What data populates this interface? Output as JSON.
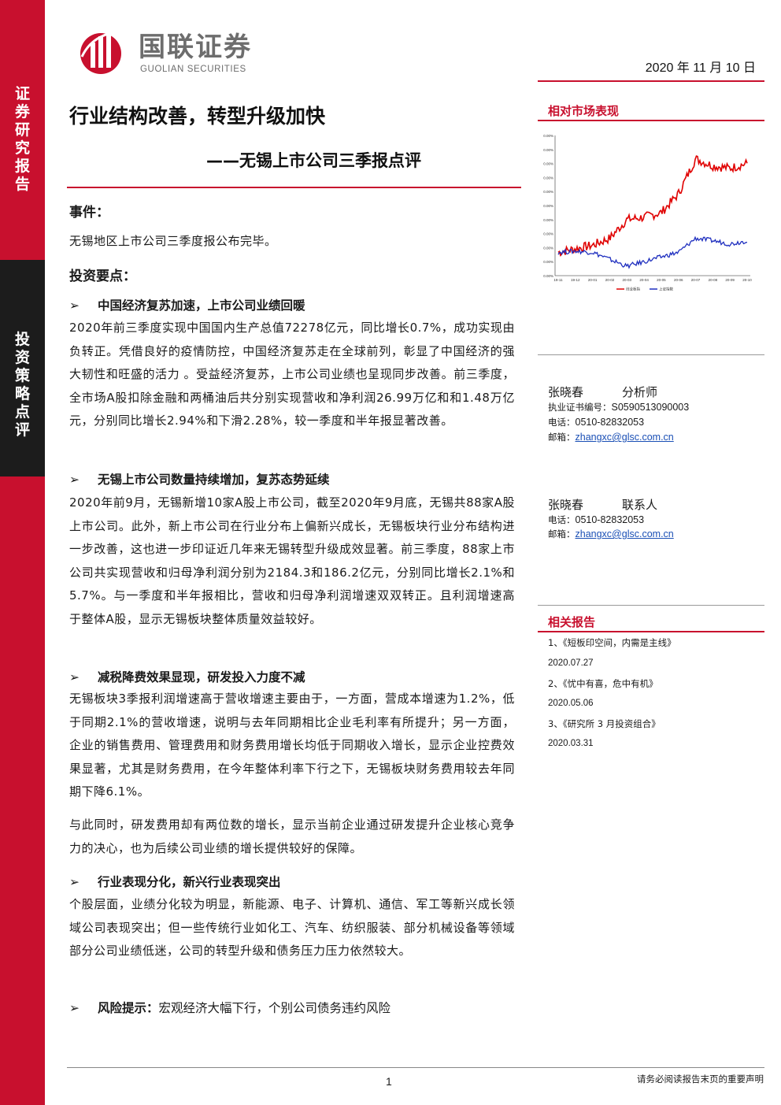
{
  "sidebar": {
    "top_label": [
      "证",
      "券",
      "研",
      "究",
      "报",
      "告"
    ],
    "bottom_label": [
      "投",
      "资",
      "策",
      "略",
      "点",
      "评"
    ]
  },
  "header": {
    "logo_cn": "国联证券",
    "logo_en": "GUOLIAN SECURITIES",
    "date": "2020 年 11 月 10 日"
  },
  "title": "行业结构改善，转型升级加快",
  "subtitle": "——无锡上市公司三季报点评",
  "event": {
    "heading": "事件：",
    "text": "无锡地区上市公司三季度报公布完毕。"
  },
  "points_heading": "投资要点：",
  "bullets": [
    {
      "arrow": "➢",
      "heading": "中国经济复苏加速，上市公司业绩回暖",
      "paragraphs": [
        "2020年前三季度实现中国国内生产总值72278亿元，同比增长0.7%，成功实现由负转正。凭借良好的疫情防控，中国经济复苏走在全球前列，彰显了中国经济的强大韧性和旺盛的活力 。受益经济复苏，上市公司业绩也呈现同步改善。前三季度，全市场A股扣除金融和两桶油后共分别实现营收和净利润26.99万亿和和1.48万亿元，分别同比增长2.94%和下滑2.28%，较一季度和半年报显著改善。"
      ]
    },
    {
      "arrow": "➢",
      "heading": "无锡上市公司数量持续增加，复苏态势延续",
      "paragraphs": [
        "2020年前9月，无锡新增10家A股上市公司，截至2020年9月底，无锡共88家A股上市公司。此外，新上市公司在行业分布上偏新兴成长，无锡板块行业分布结构进一步改善，这也进一步印证近几年来无锡转型升级成效显著。前三季度，88家上市公司共实现营收和归母净利润分别为2184.3和186.2亿元，分别同比增长2.1%和5.7%。与一季度和半年报相比，营收和归母净利润增速双双转正。且利润增速高于整体A股，显示无锡板块整体质量效益较好。"
      ]
    },
    {
      "arrow": "➢",
      "heading": "减税降费效果显现，研发投入力度不减",
      "paragraphs": [
        "无锡板块3季报利润增速高于营收增速主要由于，一方面，营成本增速为1.2%，低于同期2.1%的营收增速，说明与去年同期相比企业毛利率有所提升；另一方面，企业的销售费用、管理费用和财务费用增长均低于同期收入增长，显示企业控费效果显著，尤其是财务费用，在今年整体利率下行之下，无锡板块财务费用较去年同期下降6.1%。",
        "与此同时，研发费用却有两位数的增长，显示当前企业通过研发提升企业核心竞争力的决心，也为后续公司业绩的增长提供较好的保障。"
      ]
    },
    {
      "arrow": "➢",
      "heading": "行业表现分化，新兴行业表现突出",
      "paragraphs": [
        "个股层面，业绩分化较为明显，新能源、电子、计算机、通信、军工等新兴成长领域公司表现突出；但一些传统行业如化工、汽车、纺织服装、部分机械设备等领域部分公司业绩低迷，公司的转型升级和债务压力压力依然较大。"
      ]
    }
  ],
  "risk": {
    "arrow": "➢",
    "label": "风险提示：",
    "text": "宏观经济大幅下行，个别公司债务违约风险"
  },
  "right": {
    "market_heading": "相对市场表现",
    "analyst": {
      "name": "张晓春",
      "role": "分析师",
      "cert_label": "执业证书编号：",
      "cert": "S0590513090003",
      "phone_label": "电话：",
      "phone": "0510-82832053",
      "email_label": "邮箱：",
      "email": "zhangxc@glsc.com.cn"
    },
    "contact": {
      "name": "张晓春",
      "role": "联系人",
      "phone_label": "电话：",
      "phone": "0510-82832053",
      "email_label": "邮箱：",
      "email": "zhangxc@glsc.com.cn"
    },
    "reports_heading": "相关报告",
    "reports": [
      {
        "title": "1、《短板印空间，内需是主线》",
        "date": "2020.07.27"
      },
      {
        "title": "2、《忧中有喜，危中有机》",
        "date": "2020.05.06"
      },
      {
        "title": "3、《研究所 3 月投资组合》",
        "date": "2020.03.31"
      }
    ]
  },
  "chart_data": {
    "type": "line",
    "x": [
      "19-11",
      "19-12",
      "20-01",
      "20-02",
      "20-03",
      "20-04",
      "20-05",
      "20-06",
      "20-07",
      "20-08",
      "20-09",
      "20-10"
    ],
    "yticks": [
      "0.00%",
      "0.00%",
      "0.00%",
      "0.00%",
      "0.00%",
      "0.00%",
      "0.00%",
      "0.00%",
      "0.00%",
      "0.00%",
      "0.00%"
    ],
    "series": [
      {
        "name": "创业板指",
        "color": "#e00000",
        "values": [
          0,
          3,
          6,
          12,
          28,
          30,
          34,
          50,
          80,
          74,
          72,
          76
        ]
      },
      {
        "name": "上证指数",
        "color": "#1f2fbf",
        "values": [
          0,
          1,
          0,
          -6,
          -12,
          -8,
          -4,
          0,
          12,
          10,
          7,
          10
        ]
      }
    ],
    "ylim": [
      -20,
      100
    ]
  },
  "footer": {
    "page": "1",
    "disclaimer": "请务必阅读报告末页的重要声明"
  }
}
